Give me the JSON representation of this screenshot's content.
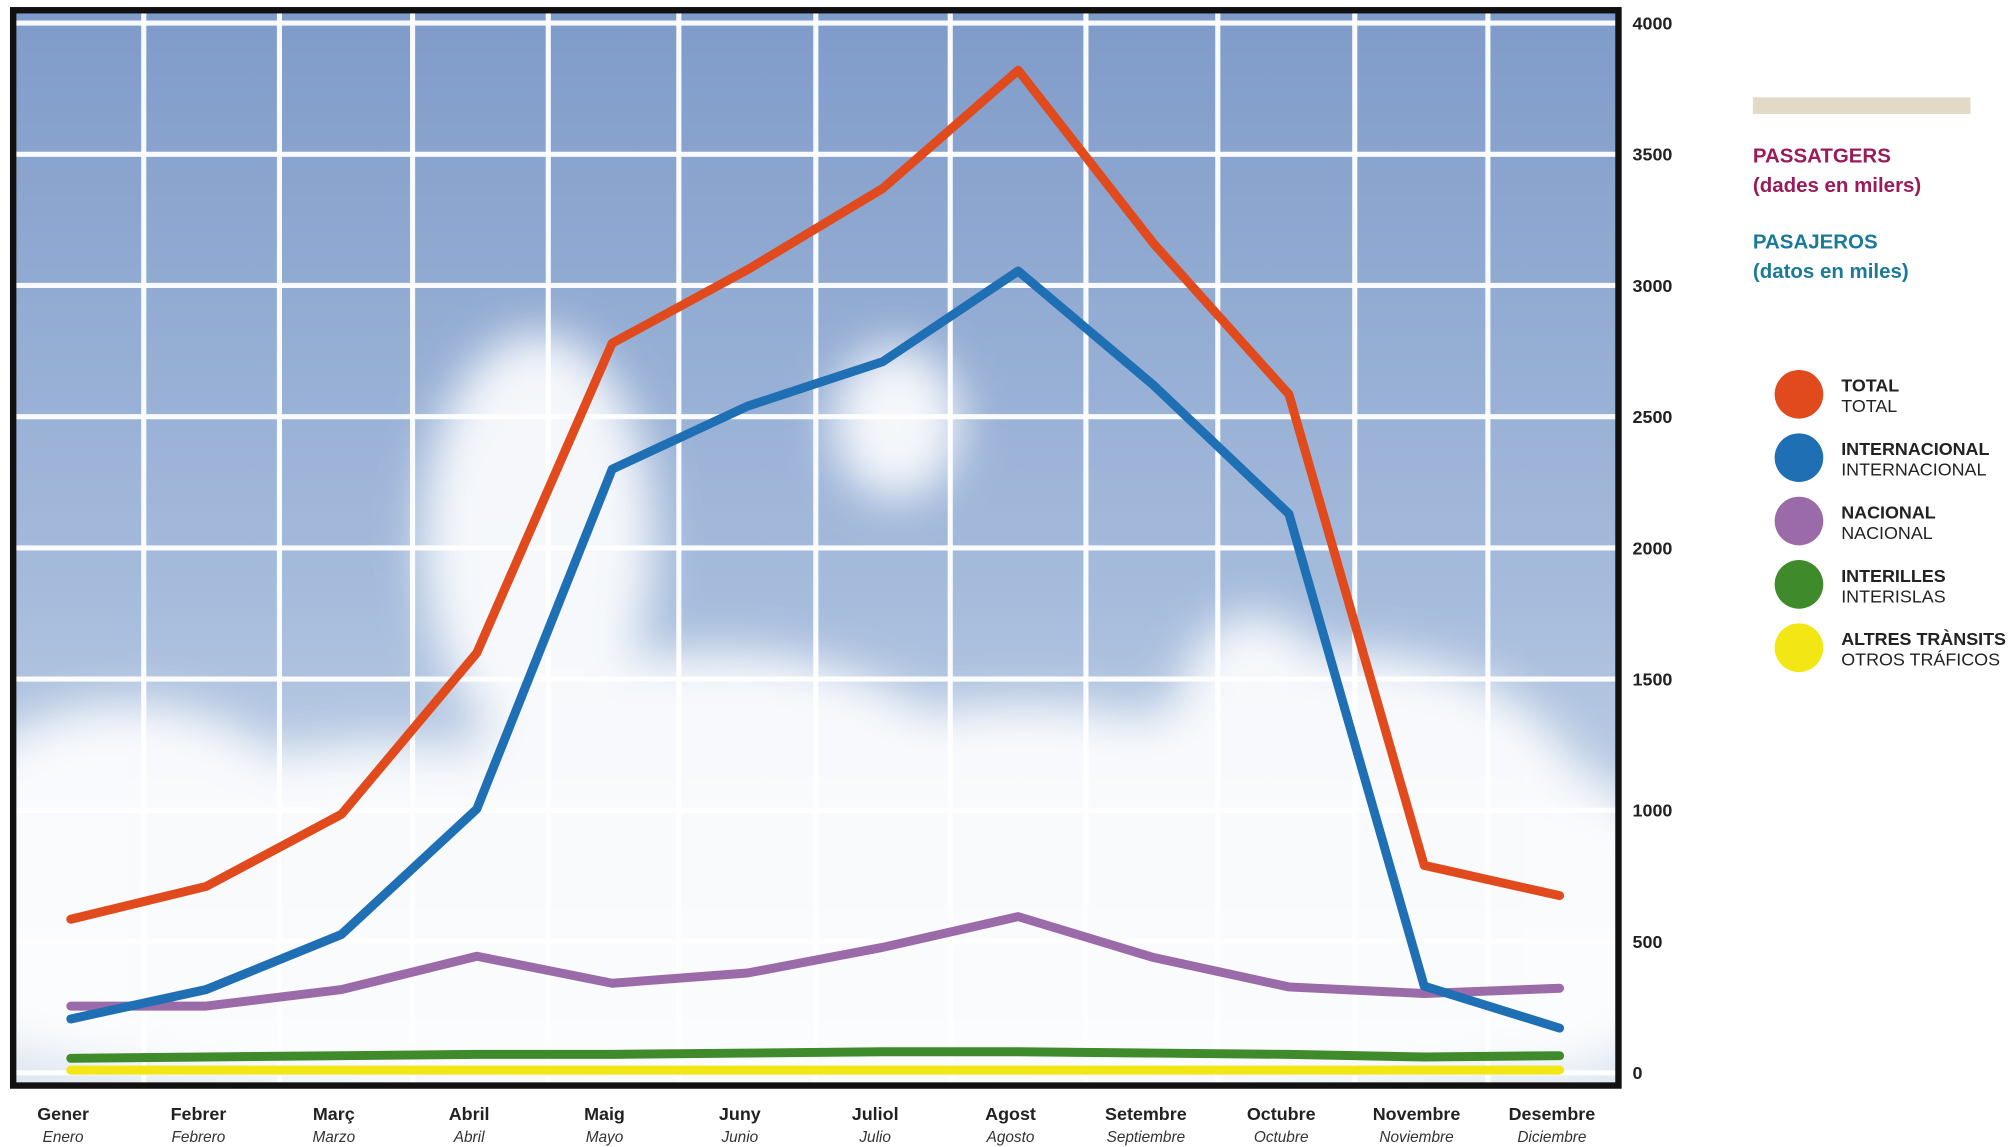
{
  "chart_data": {
    "type": "line",
    "legend_title_ca": "PASSATGERS",
    "legend_subtitle_ca": "(dades en milers)",
    "legend_title_es": "PASAJEROS",
    "legend_subtitle_es": "(datos en miles)",
    "categories": [
      "Gener",
      "Febrer",
      "Març",
      "Abril",
      "Maig",
      "Juny",
      "Juliol",
      "Agost",
      "Setembre",
      "Octubre",
      "Novembre",
      "Desembre"
    ],
    "categories_es": [
      "Enero",
      "Febrero",
      "Marzo",
      "Abril",
      "Mayo",
      "Junio",
      "Julio",
      "Agosto",
      "Septiembre",
      "Octubre",
      "Noviembre",
      "Diciembre"
    ],
    "series": [
      {
        "name": "TOTAL",
        "name_es": "TOTAL",
        "color": "#e04a1c",
        "values": [
          585,
          710,
          985,
          1600,
          2780,
          3060,
          3370,
          3820,
          3160,
          2585,
          790,
          675
        ]
      },
      {
        "name": "INTERNACIONAL",
        "name_es": "INTERNACIONAL",
        "color": "#1f6fb5",
        "values": [
          205,
          317,
          527,
          1005,
          2300,
          2540,
          2710,
          3055,
          2620,
          2130,
          330,
          170
        ]
      },
      {
        "name": "NACIONAL",
        "name_es": "NACIONAL",
        "color": "#9b6aa8",
        "values": [
          254,
          254,
          317,
          444,
          341,
          380,
          478,
          595,
          439,
          327,
          302,
          322
        ]
      },
      {
        "name": "INTERILLES",
        "name_es": "INTERISLAS",
        "color": "#3f8a2a",
        "values": [
          55,
          60,
          65,
          70,
          70,
          75,
          80,
          80,
          75,
          70,
          60,
          65
        ]
      },
      {
        "name": "ALTRES TRÀNSITS",
        "name_es": "OTROS TRÁFICOS",
        "color": "#f2e614",
        "values": [
          10,
          10,
          10,
          10,
          10,
          10,
          10,
          10,
          10,
          10,
          10,
          10
        ]
      }
    ],
    "ylim": [
      0,
      4000
    ],
    "yticks": [
      0,
      500,
      1000,
      1500,
      2000,
      2500,
      3000,
      3500,
      4000
    ],
    "grid": true
  }
}
